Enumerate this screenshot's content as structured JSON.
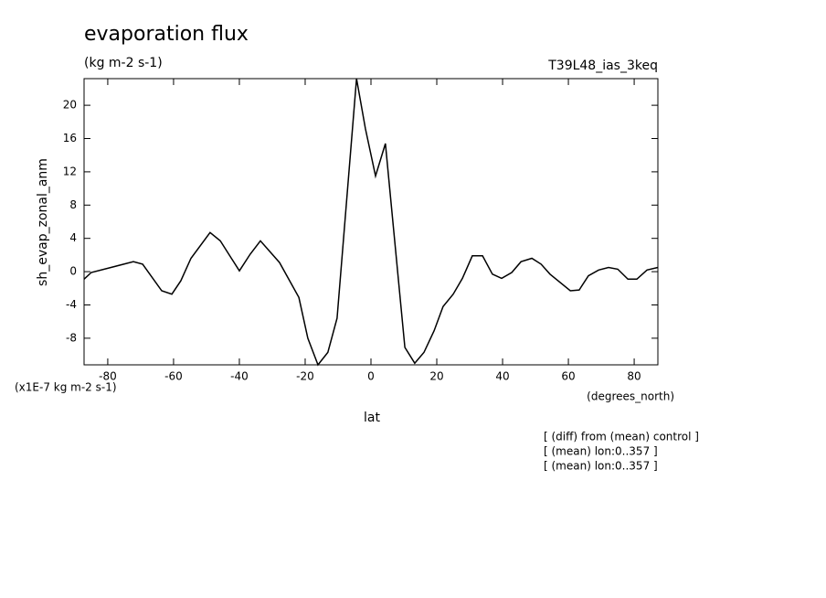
{
  "chart_data": {
    "type": "line",
    "title": "evaporation flux",
    "subtitle": "(kg m-2 s-1)",
    "run_label": "T39L48_ias_3keq",
    "y_label": "sh_evap_zonal_anm",
    "y_scale_label": "(x1E-7 kg m-2 s-1)",
    "x_label": "lat",
    "x_units": "(degrees_north)",
    "notes": [
      "[ (diff) from (mean) control ]",
      "[ (mean) lon:0..357 ]",
      "[ (mean) lon:0..357 ]"
    ],
    "x": [
      -87.2,
      -85,
      -72.2,
      -69.4,
      -63.6,
      -60.5,
      -57.8,
      -54.7,
      -48.9,
      -45.8,
      -40,
      -36.7,
      -33.6,
      -27.8,
      -21.9,
      -19.2,
      -16.1,
      -13.1,
      -10.3,
      -4.4,
      -1.7,
      1.4,
      4.4,
      10.3,
      13.3,
      16.1,
      19.2,
      21.9,
      25,
      27.8,
      30.8,
      33.9,
      36.9,
      39.7,
      42.8,
      45.6,
      48.9,
      51.7,
      54.4,
      60.6,
      63.3,
      66.1,
      69.2,
      72.2,
      75,
      78.1,
      80.8,
      83.9,
      87.2
    ],
    "series": [
      {
        "color": "#000000",
        "values": [
          -0.9,
          -0.1,
          1.2,
          0.9,
          -2.3,
          -2.7,
          -1.1,
          1.6,
          4.7,
          3.7,
          0.1,
          2.1,
          3.7,
          1.1,
          -3.1,
          -8,
          -11.2,
          -9.7,
          -5.6,
          23.2,
          17.2,
          11.5,
          15.4,
          -9.1,
          -11,
          -9.7,
          -7.1,
          -4.2,
          -2.7,
          -0.8,
          1.9,
          1.9,
          -0.3,
          -0.8,
          -0.1,
          1.2,
          1.6,
          0.9,
          -0.3,
          -2.3,
          -2.2,
          -0.5,
          0.2,
          0.5,
          0.3,
          -0.9,
          -0.9,
          0.2,
          0.5
        ]
      }
    ],
    "xlim": [
      -87.2,
      87.2
    ],
    "ylim": [
      -11.2,
      23.2
    ],
    "xticks": [
      -80,
      -60,
      -40,
      -20,
      0,
      20,
      40,
      60,
      80
    ],
    "yticks": [
      -8,
      -4,
      0,
      4,
      8,
      12,
      16,
      20
    ]
  }
}
